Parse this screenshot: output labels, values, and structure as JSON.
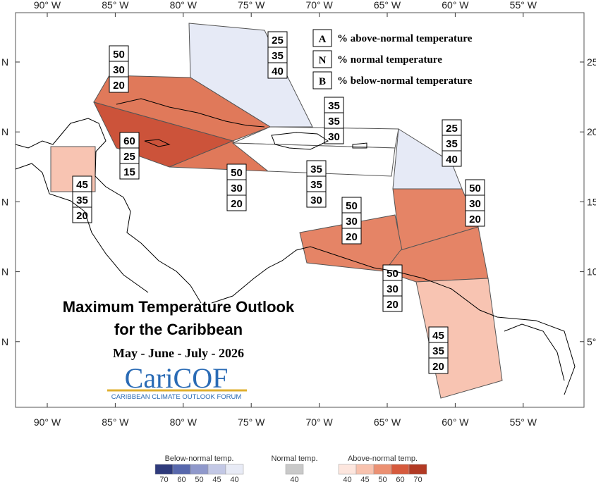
{
  "map": {
    "title_line1": "Maximum Temperature Outlook",
    "title_line2": "for the Caribbean",
    "season": "May - June - July - 2026",
    "logo": "CariCOF",
    "logo_subtitle": "CARIBBEAN CLIMATE OUTLOOK FORUM",
    "key": [
      {
        "letter": "A",
        "text": "% above-normal temperature"
      },
      {
        "letter": "N",
        "text": "% normal temperature"
      },
      {
        "letter": "B",
        "text": "% below-normal temperature"
      }
    ],
    "lon_labels": [
      "90° W",
      "85° W",
      "80° W",
      "75° W",
      "70° W",
      "65° W",
      "60° W",
      "55° W"
    ],
    "lat_labels_left": [
      "N",
      "N",
      "N",
      "N",
      "N"
    ],
    "lat_labels_right": [
      "25°",
      "20°",
      "15°",
      "10°",
      "5°"
    ],
    "regions": [
      {
        "probabilities": [
          25,
          35,
          40
        ],
        "color": "#e6eaf6"
      },
      {
        "probabilities": [
          50,
          30,
          20
        ],
        "color": "#e0795a"
      },
      {
        "probabilities": [
          60,
          25,
          15
        ],
        "color": "#cc533a"
      },
      {
        "probabilities": [
          50,
          30,
          20
        ],
        "color": "#e0795a"
      },
      {
        "probabilities": [
          35,
          35,
          30
        ],
        "color": "#ffffff"
      },
      {
        "probabilities": [
          35,
          35,
          30
        ],
        "color": "#ffffff"
      },
      {
        "probabilities": [
          45,
          35,
          20
        ],
        "color": "#f8c4b2"
      },
      {
        "probabilities": [
          25,
          35,
          40
        ],
        "color": "#e6eaf6"
      },
      {
        "probabilities": [
          50,
          30,
          20
        ],
        "color": "#e58466"
      },
      {
        "probabilities": [
          50,
          30,
          20
        ],
        "color": "#e58466"
      },
      {
        "probabilities": [
          50,
          30,
          20
        ],
        "color": "#e58466"
      },
      {
        "probabilities": [
          45,
          35,
          20
        ],
        "color": "#f8c4b2"
      }
    ],
    "colorbar": {
      "below": {
        "label": "Below-normal temp.",
        "ticks": [
          70,
          60,
          50,
          45,
          40
        ],
        "colors": [
          "#2f3b7c",
          "#5868ad",
          "#8f98cb",
          "#c3c8e5",
          "#e8ebf6"
        ]
      },
      "normal": {
        "label": "Normal temp.",
        "ticks": [
          40
        ],
        "colors": [
          "#c9c9c9"
        ]
      },
      "above": {
        "label": "Above-normal temp.",
        "ticks": [
          40,
          45,
          50,
          60,
          70
        ],
        "colors": [
          "#fde6de",
          "#f8c2ae",
          "#ec9072",
          "#d65a3d",
          "#b23a24"
        ]
      }
    }
  }
}
